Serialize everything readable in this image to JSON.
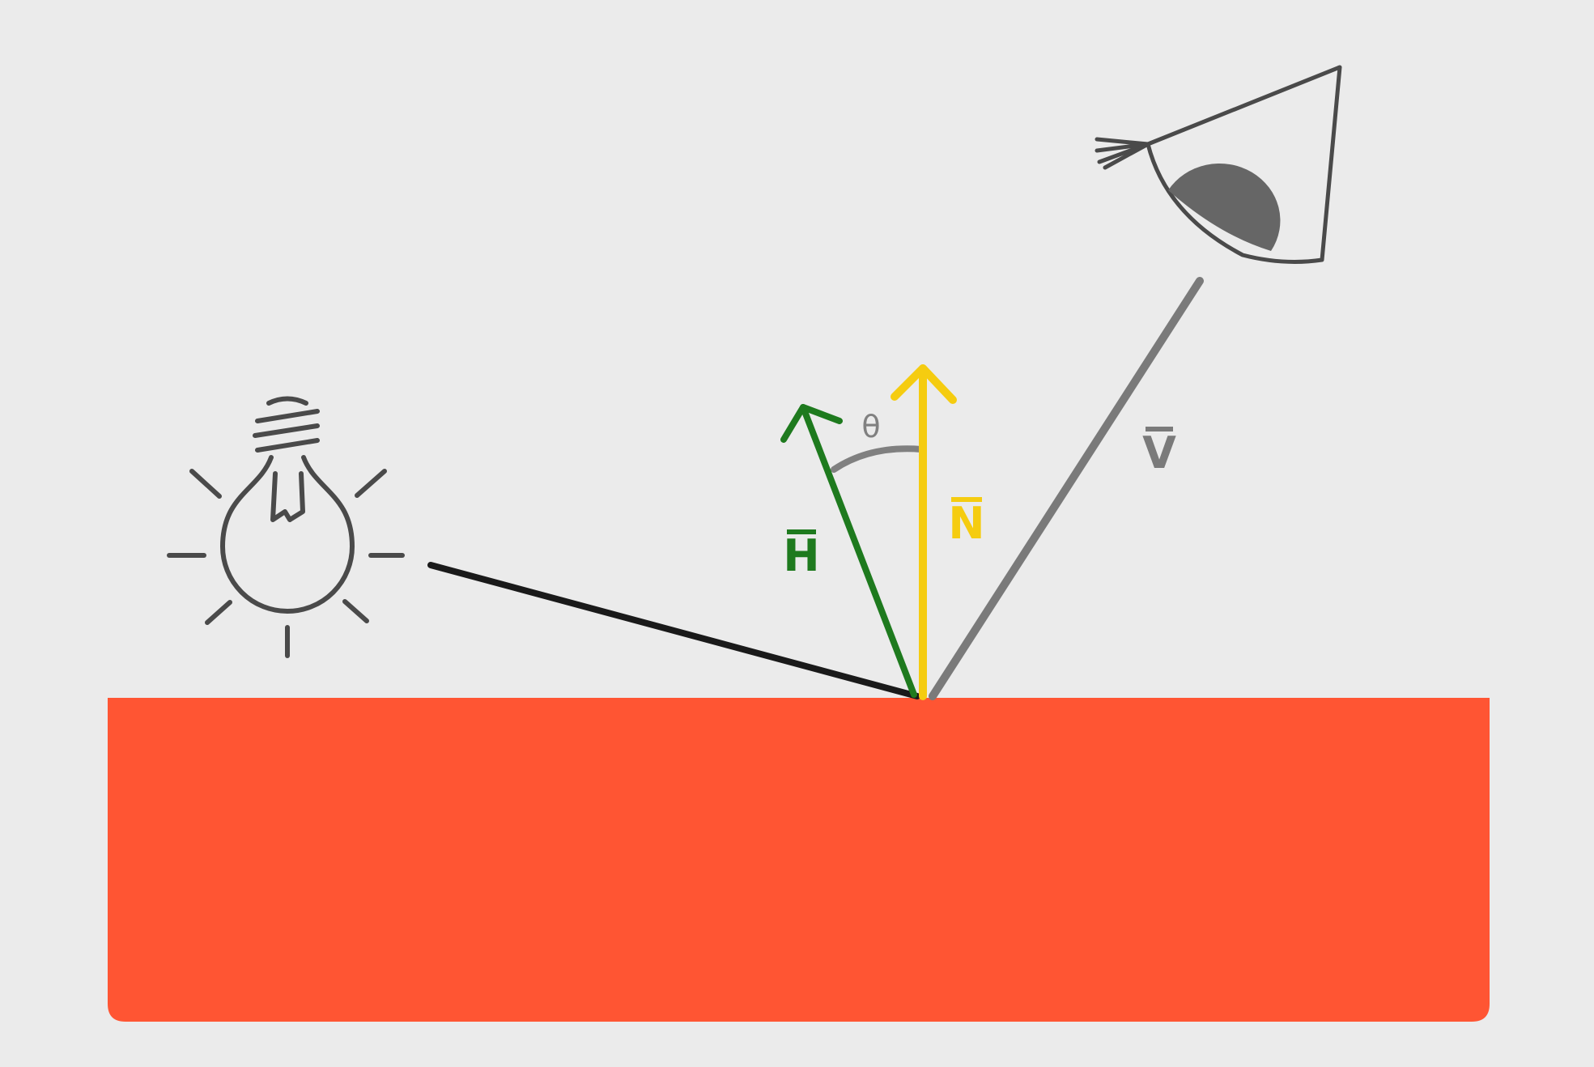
{
  "colors": {
    "background": "#ebebeb",
    "surface": "#ff5533",
    "light_ray": "#1a1a1a",
    "half_vector": "#1e7a1e",
    "normal": "#f5cc10",
    "view_ray": "#7a7a7a",
    "angle_arc": "#808080",
    "icon_stroke": "#4a4a4a",
    "eye_iris": "#666666"
  },
  "icons": {
    "light": "light-bulb-icon",
    "viewer": "eye-icon"
  },
  "labels": {
    "half_vector": "H",
    "normal": "N",
    "view": "V",
    "angle": "θ"
  }
}
